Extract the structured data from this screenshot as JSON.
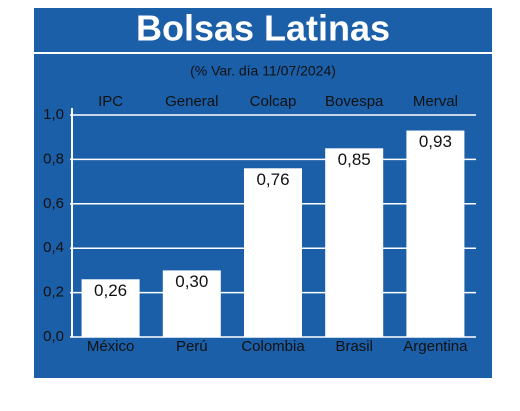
{
  "chart_data": {
    "type": "bar",
    "title": "Bolsas Latinas",
    "subtitle": "(% Var. día 11/07/2024)",
    "indices": [
      "IPC",
      "General",
      "Colcap",
      "Bovespa",
      "Merval"
    ],
    "categories": [
      "México",
      "Perú",
      "Colombia",
      "Brasil",
      "Argentina"
    ],
    "values": [
      0.26,
      0.3,
      0.76,
      0.85,
      0.93
    ],
    "value_labels": [
      "0,26",
      "0,30",
      "0,76",
      "0,85",
      "0,93"
    ],
    "color": "#ffffff",
    "background": "#1b5fa9",
    "ylim": [
      0,
      1.0
    ],
    "yticks": [
      {
        "value": 0,
        "label": "0,0"
      },
      {
        "value": 0.2,
        "label": "0,2"
      },
      {
        "value": 0.4,
        "label": "0,4"
      },
      {
        "value": 0.6,
        "label": "0,6"
      },
      {
        "value": 0.8,
        "label": "0,8"
      },
      {
        "value": 1.0,
        "label": "1,0"
      }
    ],
    "grid": true
  }
}
